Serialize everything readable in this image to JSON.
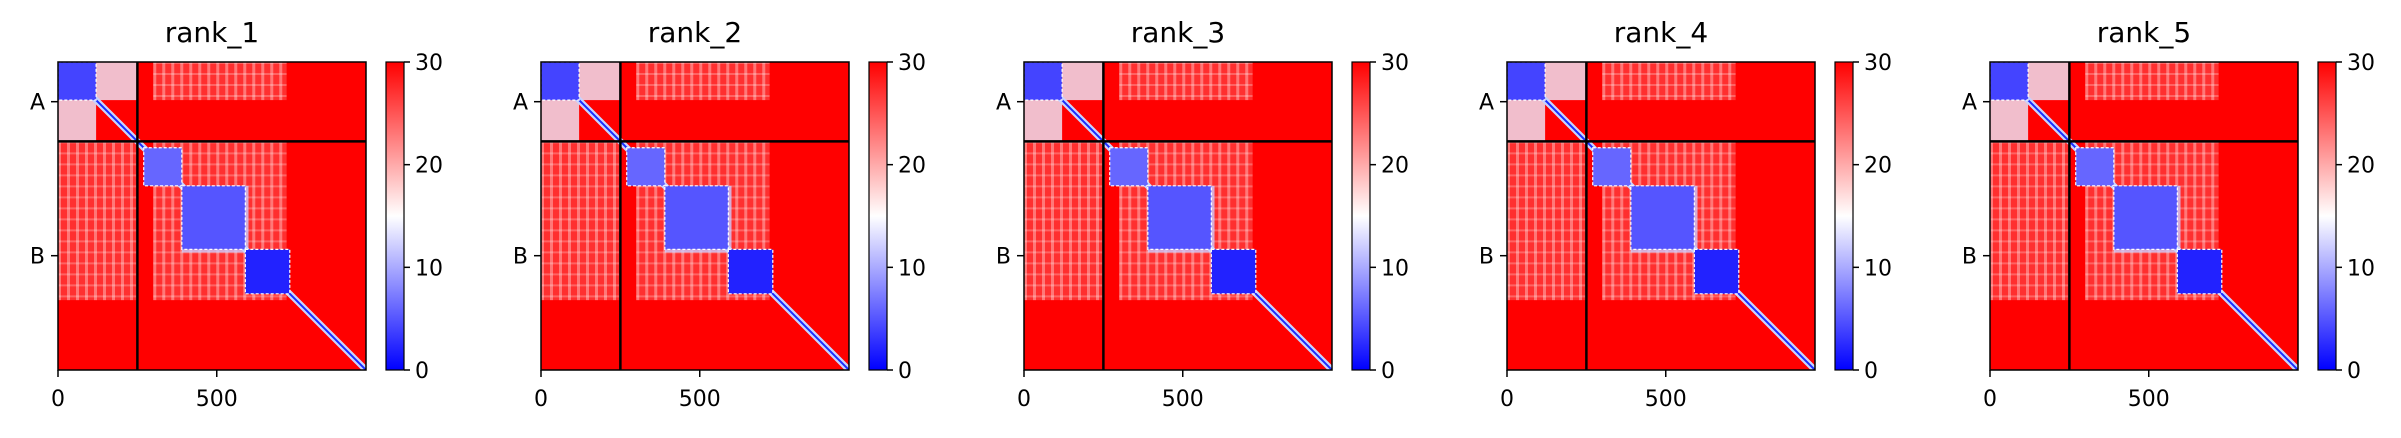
{
  "chart_data": [
    {
      "type": "heatmap",
      "title": "rank_1",
      "x_ticks": [
        "0",
        "500"
      ],
      "y_ticks": [
        "A",
        "B"
      ],
      "chain_boundary": 250,
      "extent": [
        0,
        970
      ],
      "colorbar": {
        "min": 0,
        "max": 30,
        "ticks": [
          "0",
          "10",
          "20",
          "30"
        ],
        "colormap": "bwr"
      },
      "blue_blocks": [
        {
          "start": 0,
          "end": 120,
          "value": 4
        },
        {
          "start": 270,
          "end": 390,
          "value": 6
        },
        {
          "start": 390,
          "end": 590,
          "value": 5
        },
        {
          "start": 590,
          "end": 730,
          "value": 2
        }
      ],
      "off_diagonal_contacts": [
        {
          "row_start": 0,
          "row_end": 120,
          "col_start": 120,
          "col_end": 250,
          "value": 14
        },
        {
          "row_start": 480,
          "row_end": 600,
          "col_start": 390,
          "col_end": 590,
          "value": 12
        }
      ],
      "lighter_regions": [
        {
          "row_start": 0,
          "row_end": 120,
          "col_start": 300,
          "col_end": 720,
          "value": 25
        },
        {
          "row_start": 250,
          "row_end": 750,
          "col_start": 0,
          "col_end": 250,
          "value": 25
        },
        {
          "row_start": 250,
          "row_end": 750,
          "col_start": 300,
          "col_end": 720,
          "value": 25
        }
      ]
    },
    {
      "type": "heatmap",
      "title": "rank_2",
      "x_ticks": [
        "0",
        "500"
      ],
      "y_ticks": [
        "A",
        "B"
      ],
      "chain_boundary": 250,
      "extent": [
        0,
        970
      ],
      "colorbar": {
        "min": 0,
        "max": 30,
        "ticks": [
          "0",
          "10",
          "20",
          "30"
        ],
        "colormap": "bwr"
      },
      "blue_blocks": [
        {
          "start": 0,
          "end": 120,
          "value": 4
        },
        {
          "start": 270,
          "end": 390,
          "value": 6
        },
        {
          "start": 390,
          "end": 590,
          "value": 5
        },
        {
          "start": 590,
          "end": 730,
          "value": 2
        }
      ],
      "off_diagonal_contacts": [
        {
          "row_start": 0,
          "row_end": 120,
          "col_start": 120,
          "col_end": 250,
          "value": 14
        },
        {
          "row_start": 480,
          "row_end": 600,
          "col_start": 390,
          "col_end": 590,
          "value": 12
        }
      ],
      "lighter_regions": [
        {
          "row_start": 0,
          "row_end": 120,
          "col_start": 300,
          "col_end": 720,
          "value": 25
        },
        {
          "row_start": 250,
          "row_end": 750,
          "col_start": 0,
          "col_end": 250,
          "value": 25
        },
        {
          "row_start": 250,
          "row_end": 750,
          "col_start": 300,
          "col_end": 720,
          "value": 25
        }
      ]
    },
    {
      "type": "heatmap",
      "title": "rank_3",
      "x_ticks": [
        "0",
        "500"
      ],
      "y_ticks": [
        "A",
        "B"
      ],
      "chain_boundary": 250,
      "extent": [
        0,
        970
      ],
      "colorbar": {
        "min": 0,
        "max": 30,
        "ticks": [
          "0",
          "10",
          "20",
          "30"
        ],
        "colormap": "bwr"
      },
      "blue_blocks": [
        {
          "start": 0,
          "end": 120,
          "value": 4
        },
        {
          "start": 270,
          "end": 390,
          "value": 6
        },
        {
          "start": 390,
          "end": 590,
          "value": 5
        },
        {
          "start": 590,
          "end": 730,
          "value": 2
        }
      ],
      "off_diagonal_contacts": [
        {
          "row_start": 0,
          "row_end": 120,
          "col_start": 120,
          "col_end": 250,
          "value": 14
        },
        {
          "row_start": 480,
          "row_end": 600,
          "col_start": 390,
          "col_end": 590,
          "value": 12
        }
      ],
      "lighter_regions": [
        {
          "row_start": 0,
          "row_end": 120,
          "col_start": 300,
          "col_end": 720,
          "value": 25
        },
        {
          "row_start": 250,
          "row_end": 750,
          "col_start": 0,
          "col_end": 250,
          "value": 25
        },
        {
          "row_start": 250,
          "row_end": 750,
          "col_start": 300,
          "col_end": 720,
          "value": 25
        }
      ]
    },
    {
      "type": "heatmap",
      "title": "rank_4",
      "x_ticks": [
        "0",
        "500"
      ],
      "y_ticks": [
        "A",
        "B"
      ],
      "chain_boundary": 250,
      "extent": [
        0,
        970
      ],
      "colorbar": {
        "min": 0,
        "max": 30,
        "ticks": [
          "0",
          "10",
          "20",
          "30"
        ],
        "colormap": "bwr"
      },
      "blue_blocks": [
        {
          "start": 0,
          "end": 120,
          "value": 4
        },
        {
          "start": 270,
          "end": 390,
          "value": 6
        },
        {
          "start": 390,
          "end": 590,
          "value": 5
        },
        {
          "start": 590,
          "end": 730,
          "value": 2
        }
      ],
      "off_diagonal_contacts": [
        {
          "row_start": 0,
          "row_end": 120,
          "col_start": 120,
          "col_end": 250,
          "value": 14
        },
        {
          "row_start": 480,
          "row_end": 600,
          "col_start": 390,
          "col_end": 590,
          "value": 12
        }
      ],
      "lighter_regions": [
        {
          "row_start": 0,
          "row_end": 120,
          "col_start": 300,
          "col_end": 720,
          "value": 25
        },
        {
          "row_start": 250,
          "row_end": 750,
          "col_start": 0,
          "col_end": 250,
          "value": 25
        },
        {
          "row_start": 250,
          "row_end": 750,
          "col_start": 300,
          "col_end": 720,
          "value": 25
        }
      ]
    },
    {
      "type": "heatmap",
      "title": "rank_5",
      "x_ticks": [
        "0",
        "500"
      ],
      "y_ticks": [
        "A",
        "B"
      ],
      "chain_boundary": 250,
      "extent": [
        0,
        970
      ],
      "colorbar": {
        "min": 0,
        "max": 30,
        "ticks": [
          "0",
          "10",
          "20",
          "30"
        ],
        "colormap": "bwr"
      },
      "blue_blocks": [
        {
          "start": 0,
          "end": 120,
          "value": 4
        },
        {
          "start": 270,
          "end": 390,
          "value": 6
        },
        {
          "start": 390,
          "end": 590,
          "value": 5
        },
        {
          "start": 590,
          "end": 730,
          "value": 2
        }
      ],
      "off_diagonal_contacts": [
        {
          "row_start": 0,
          "row_end": 120,
          "col_start": 120,
          "col_end": 250,
          "value": 14
        },
        {
          "row_start": 480,
          "row_end": 600,
          "col_start": 390,
          "col_end": 590,
          "value": 12
        }
      ],
      "lighter_regions": [
        {
          "row_start": 0,
          "row_end": 120,
          "col_start": 300,
          "col_end": 720,
          "value": 25
        },
        {
          "row_start": 250,
          "row_end": 750,
          "col_start": 0,
          "col_end": 250,
          "value": 25
        },
        {
          "row_start": 250,
          "row_end": 750,
          "col_start": 300,
          "col_end": 720,
          "value": 25
        }
      ]
    }
  ]
}
